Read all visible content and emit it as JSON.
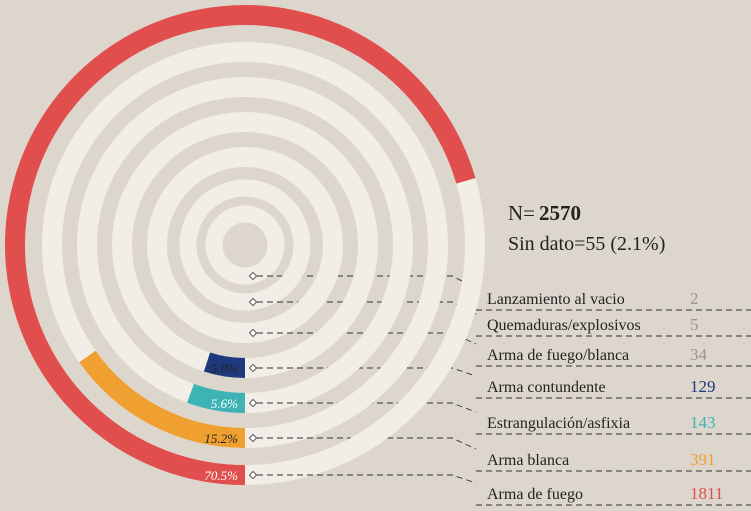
{
  "chart_data": {
    "type": "radial-bar",
    "n_label": "N=",
    "n_value": 2570,
    "missing": "Sin dato=55 (2.1%)",
    "categories": [
      "Lanzamiento al vacio",
      "Quemaduras/explosivos",
      "Arma de fuego/blanca",
      "Arma contundente",
      "Estrangulación/asfixia",
      "Arma blanca",
      "Arma de fuego"
    ],
    "counts": [
      2,
      5,
      34,
      129,
      143,
      391,
      1811
    ],
    "values": [
      null,
      null,
      null,
      5.0,
      5.6,
      15.2,
      70.5
    ],
    "value_labels": [
      null,
      null,
      null,
      "5.0%",
      "5.6%",
      "15.2%",
      "70.5%"
    ],
    "colors": [
      "#9a9590",
      "#9a9590",
      "#9a9590",
      "#1f3a7c",
      "#3db3b5",
      "#f0a030",
      "#e04e4e"
    ],
    "vlim": [
      0,
      100
    ]
  }
}
